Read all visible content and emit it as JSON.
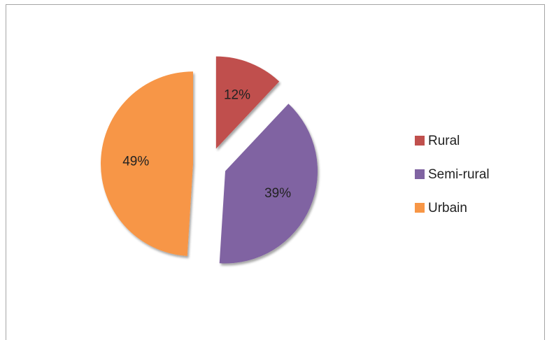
{
  "chart_data": {
    "type": "pie",
    "categories": [
      "Rural",
      "Semi-rural",
      "Urbain"
    ],
    "values": [
      12,
      39,
      49
    ],
    "value_labels": [
      "12%",
      "39%",
      "49%"
    ],
    "colors": [
      "#c0504d",
      "#8064a2",
      "#f79646"
    ],
    "legend": "right"
  }
}
